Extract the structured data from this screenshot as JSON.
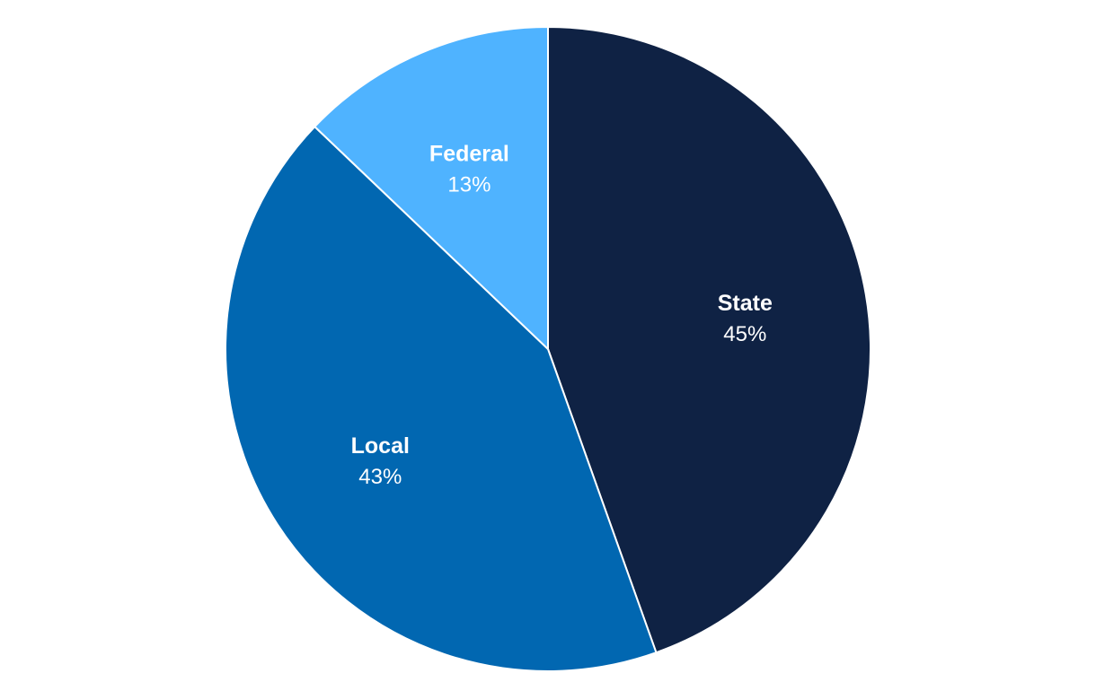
{
  "chart_data": {
    "type": "pie",
    "title": "",
    "slices": [
      {
        "name": "State",
        "value": 45,
        "label": "45%",
        "color": "#0f2244"
      },
      {
        "name": "Local",
        "value": 43,
        "label": "43%",
        "color": "#0167b1"
      },
      {
        "name": "Federal",
        "value": 13,
        "label": "13%",
        "color": "#4fb3ff"
      }
    ],
    "start_angle": "12 o'clock",
    "direction": "clockwise",
    "legend": "none"
  }
}
